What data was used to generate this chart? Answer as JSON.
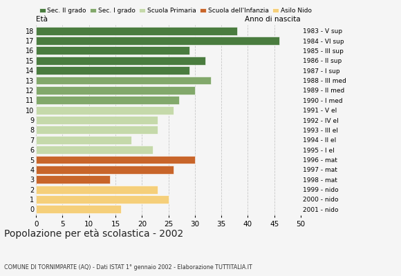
{
  "ages": [
    18,
    17,
    16,
    15,
    14,
    13,
    12,
    11,
    10,
    9,
    8,
    7,
    6,
    5,
    4,
    3,
    2,
    1,
    0
  ],
  "values": [
    38,
    46,
    29,
    32,
    29,
    33,
    30,
    27,
    26,
    23,
    23,
    18,
    22,
    30,
    26,
    14,
    23,
    25,
    16
  ],
  "right_labels": [
    "1983 - V sup",
    "1984 - VI sup",
    "1985 - III sup",
    "1986 - II sup",
    "1987 - I sup",
    "1988 - III med",
    "1989 - II med",
    "1990 - I med",
    "1991 - V el",
    "1992 - IV el",
    "1993 - III el",
    "1994 - II el",
    "1995 - I el",
    "1996 - mat",
    "1997 - mat",
    "1998 - mat",
    "1999 - nido",
    "2000 - nido",
    "2001 - nido"
  ],
  "categories": {
    "Sec. II grado": {
      "ages": [
        14,
        15,
        16,
        17,
        18
      ],
      "color": "#4a7c3f"
    },
    "Sec. I grado": {
      "ages": [
        11,
        12,
        13
      ],
      "color": "#82a86b"
    },
    "Scuola Primaria": {
      "ages": [
        6,
        7,
        8,
        9,
        10
      ],
      "color": "#c5d9aa"
    },
    "Scuola dell'Infanzia": {
      "ages": [
        3,
        4,
        5
      ],
      "color": "#c8652a"
    },
    "Asilo Nido": {
      "ages": [
        0,
        1,
        2
      ],
      "color": "#f5cf7a"
    }
  },
  "title": "Popolazione per età scolastica - 2002",
  "subtitle": "COMUNE DI TORNIMPARTE (AQ) - Dati ISTAT 1° gennaio 2002 - Elaborazione TUTTITALIA.IT",
  "xlabel_left": "Età",
  "xlabel_right": "Anno di nascita",
  "xlim": [
    0,
    50
  ],
  "xticks": [
    0,
    5,
    10,
    15,
    20,
    25,
    30,
    35,
    40,
    45,
    50
  ],
  "bg_color": "#f5f5f5",
  "bar_height": 0.82,
  "grid_color": "#999999",
  "legend_colors": {
    "Sec. II grado": "#4a7c3f",
    "Sec. I grado": "#82a86b",
    "Scuola Primaria": "#c5d9aa",
    "Scuola dell'Infanzia": "#c8652a",
    "Asilo Nido": "#f5cf7a"
  }
}
